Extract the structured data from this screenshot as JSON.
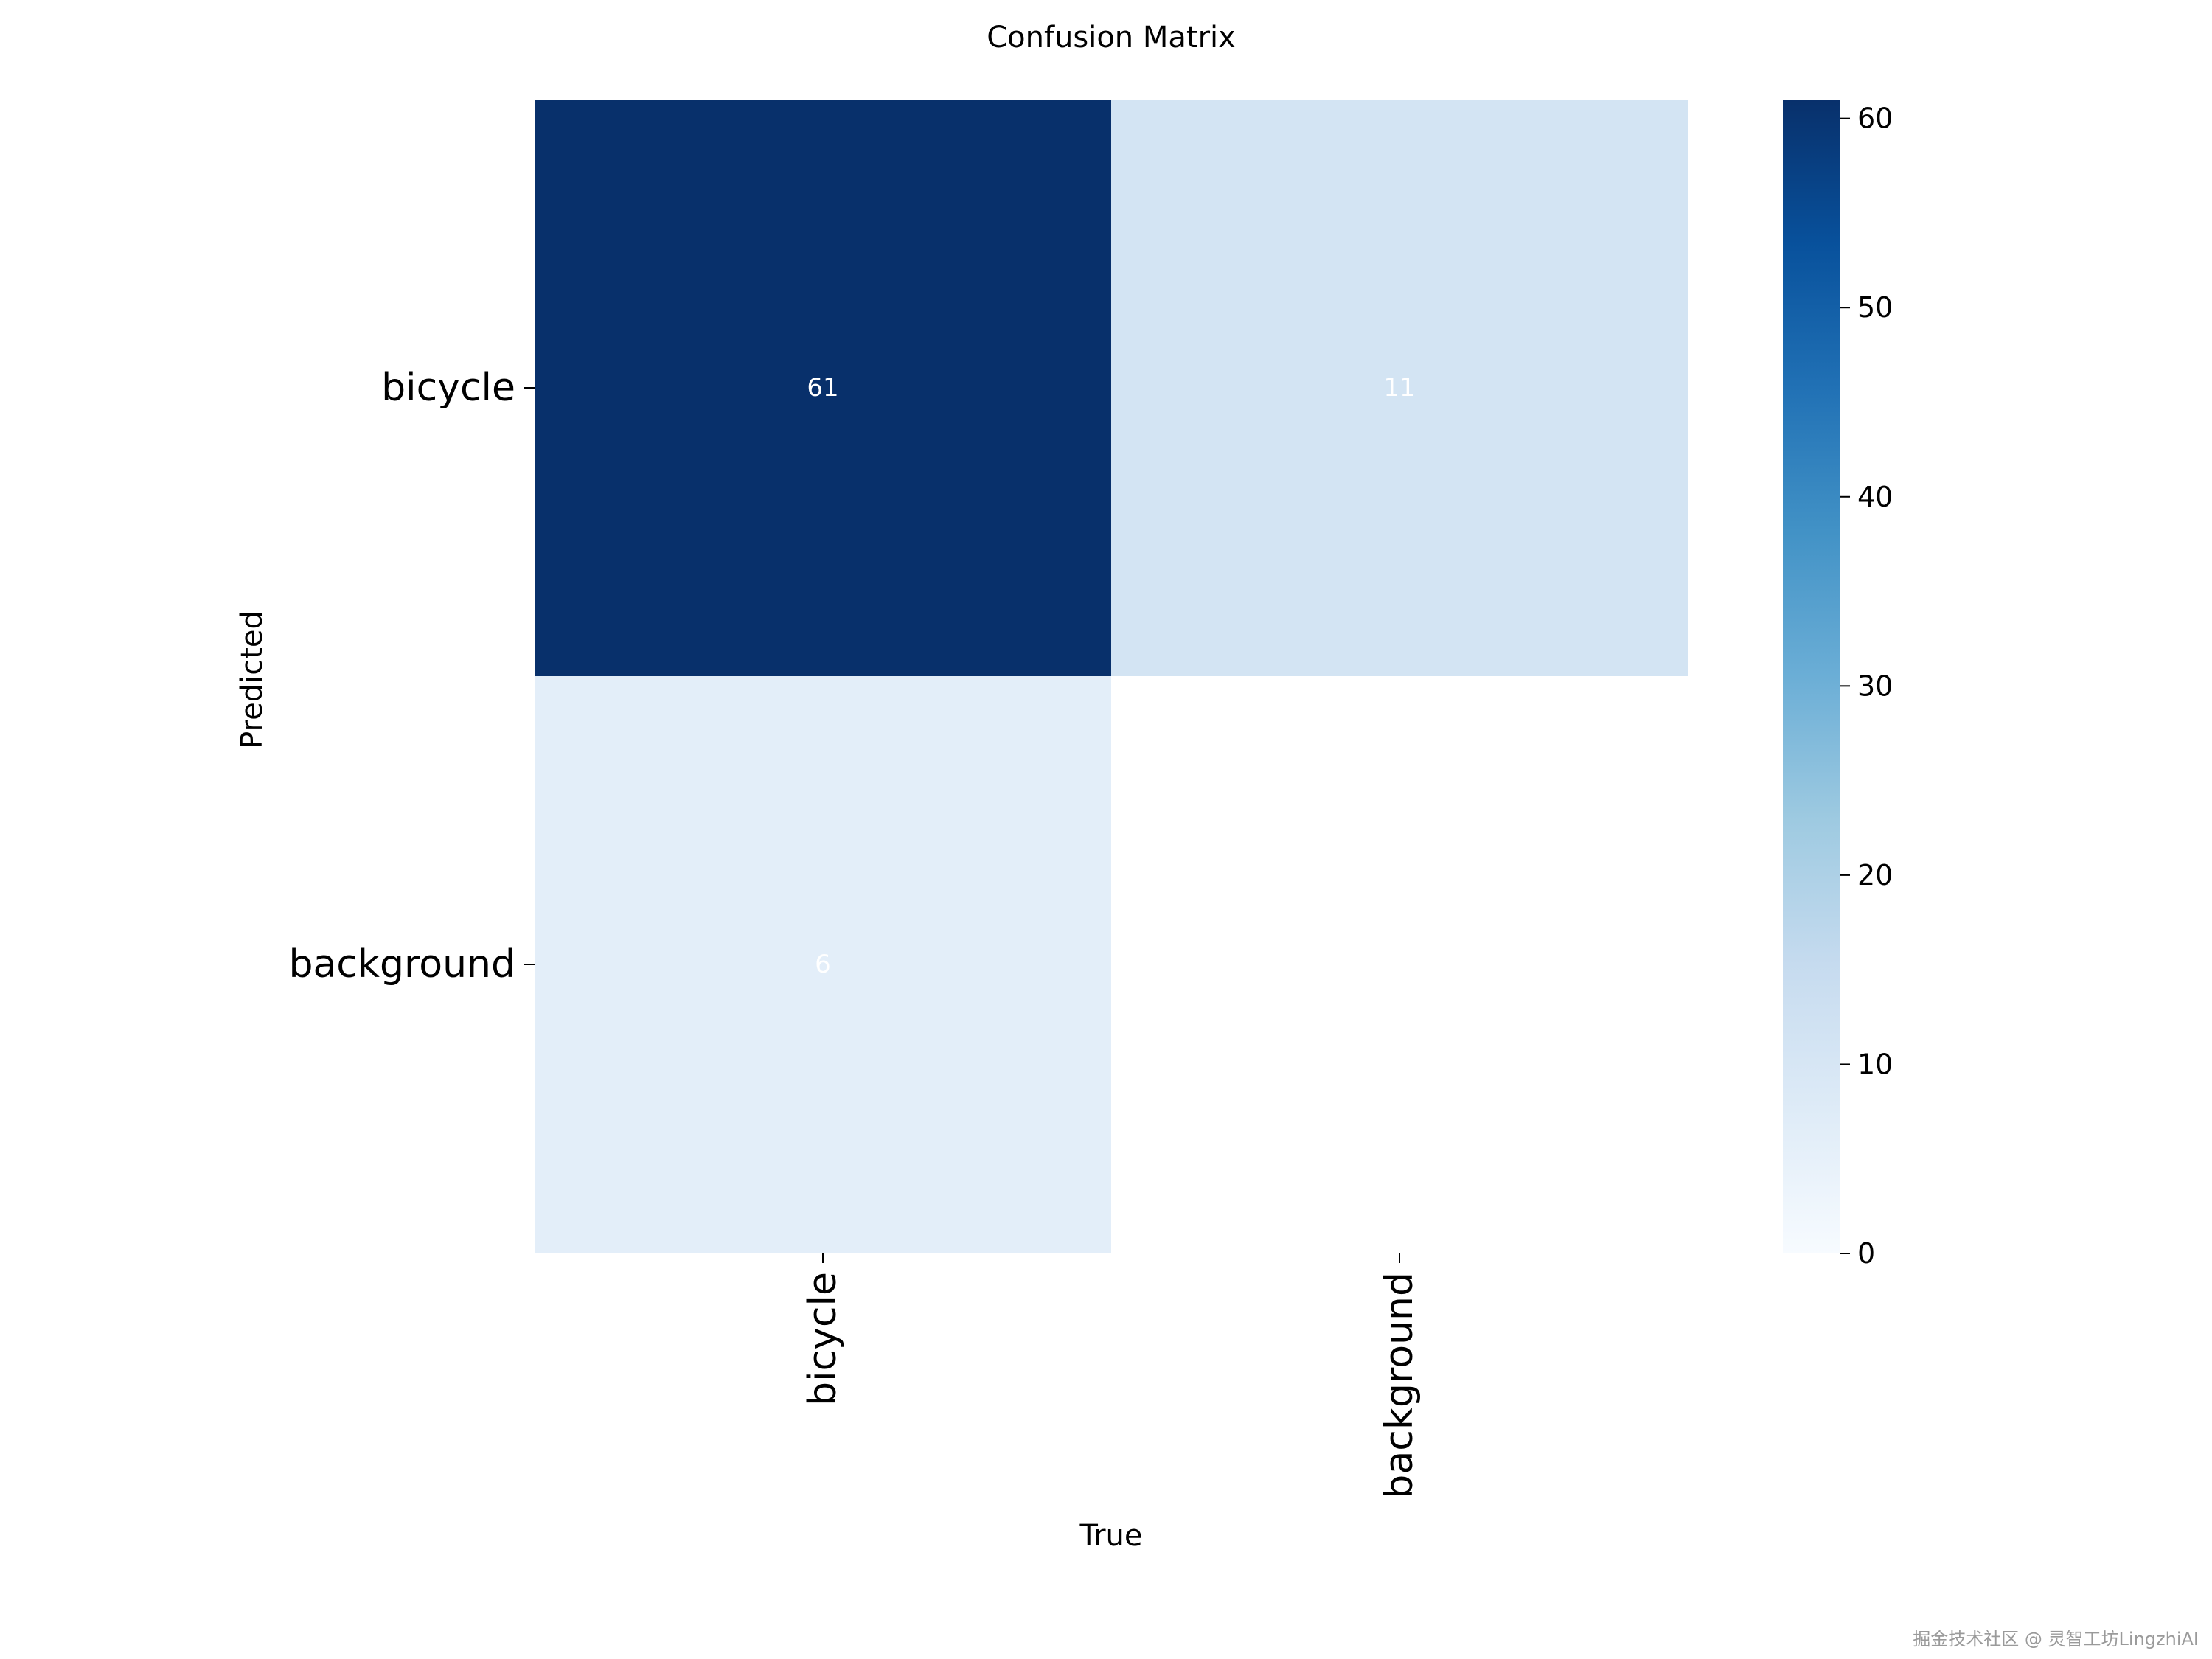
{
  "chart_data": {
    "type": "heatmap",
    "title": "Confusion Matrix",
    "xlabel": "True",
    "ylabel": "Predicted",
    "x_categories": [
      "bicycle",
      "background"
    ],
    "y_categories": [
      "bicycle",
      "background"
    ],
    "values": [
      [
        61,
        11
      ],
      [
        6,
        null
      ]
    ],
    "cell_labels": [
      [
        "61",
        "11"
      ],
      [
        "6",
        ""
      ]
    ],
    "colormap": "Blues",
    "colorbar": {
      "min": 0,
      "max": 61,
      "ticks": [
        0,
        10,
        20,
        30,
        40,
        50,
        60
      ]
    },
    "grid": false,
    "legend": "colorbar-right"
  },
  "watermark": "掘金技术社区 @ 灵智工坊LingzhiAI"
}
